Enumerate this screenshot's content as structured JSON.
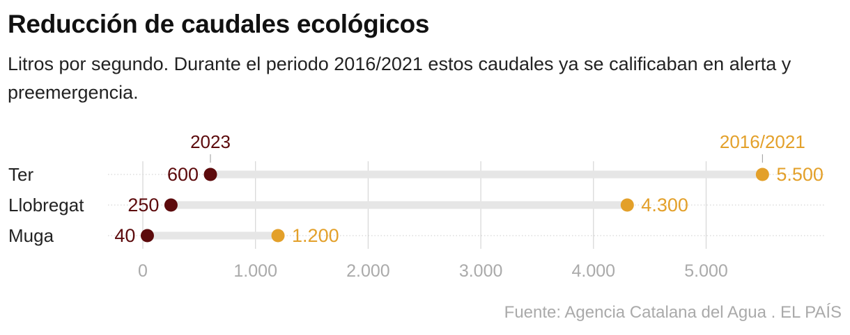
{
  "header": {
    "title": "Reducción de caudales ecológicos",
    "subtitle": "Litros por segundo. Durante el periodo 2016/2021 estos caudales ya se calificaban en alerta y preemergencia."
  },
  "footer": {
    "source": "Fuente: Agencia Catalana del Agua . EL PAÍS"
  },
  "colors": {
    "series_2023": "#5c0a0c",
    "series_2016_2021": "#e3a02a",
    "track": "#e6e6e6",
    "grid": "#d6d6d6",
    "tick": "#aaaaaa",
    "label": "#222222"
  },
  "chart_data": {
    "type": "dumbbell",
    "categories": [
      "Ter",
      "Llobregat",
      "Muga"
    ],
    "series": [
      {
        "name": "2023",
        "values": [
          600,
          250,
          40
        ]
      },
      {
        "name": "2016/2021",
        "values": [
          5500,
          4300,
          1200
        ]
      }
    ],
    "value_labels": [
      [
        "600",
        "250",
        "40"
      ],
      [
        "5.500",
        "4.300",
        "1.200"
      ]
    ],
    "xlim": [
      0,
      6000
    ],
    "x_ticks": [
      0,
      1000,
      2000,
      3000,
      4000,
      5000
    ],
    "x_tick_labels": [
      "0",
      "1.000",
      "2.000",
      "3.000",
      "4.000",
      "5.000"
    ],
    "legend": "inline-top",
    "grid": true
  }
}
